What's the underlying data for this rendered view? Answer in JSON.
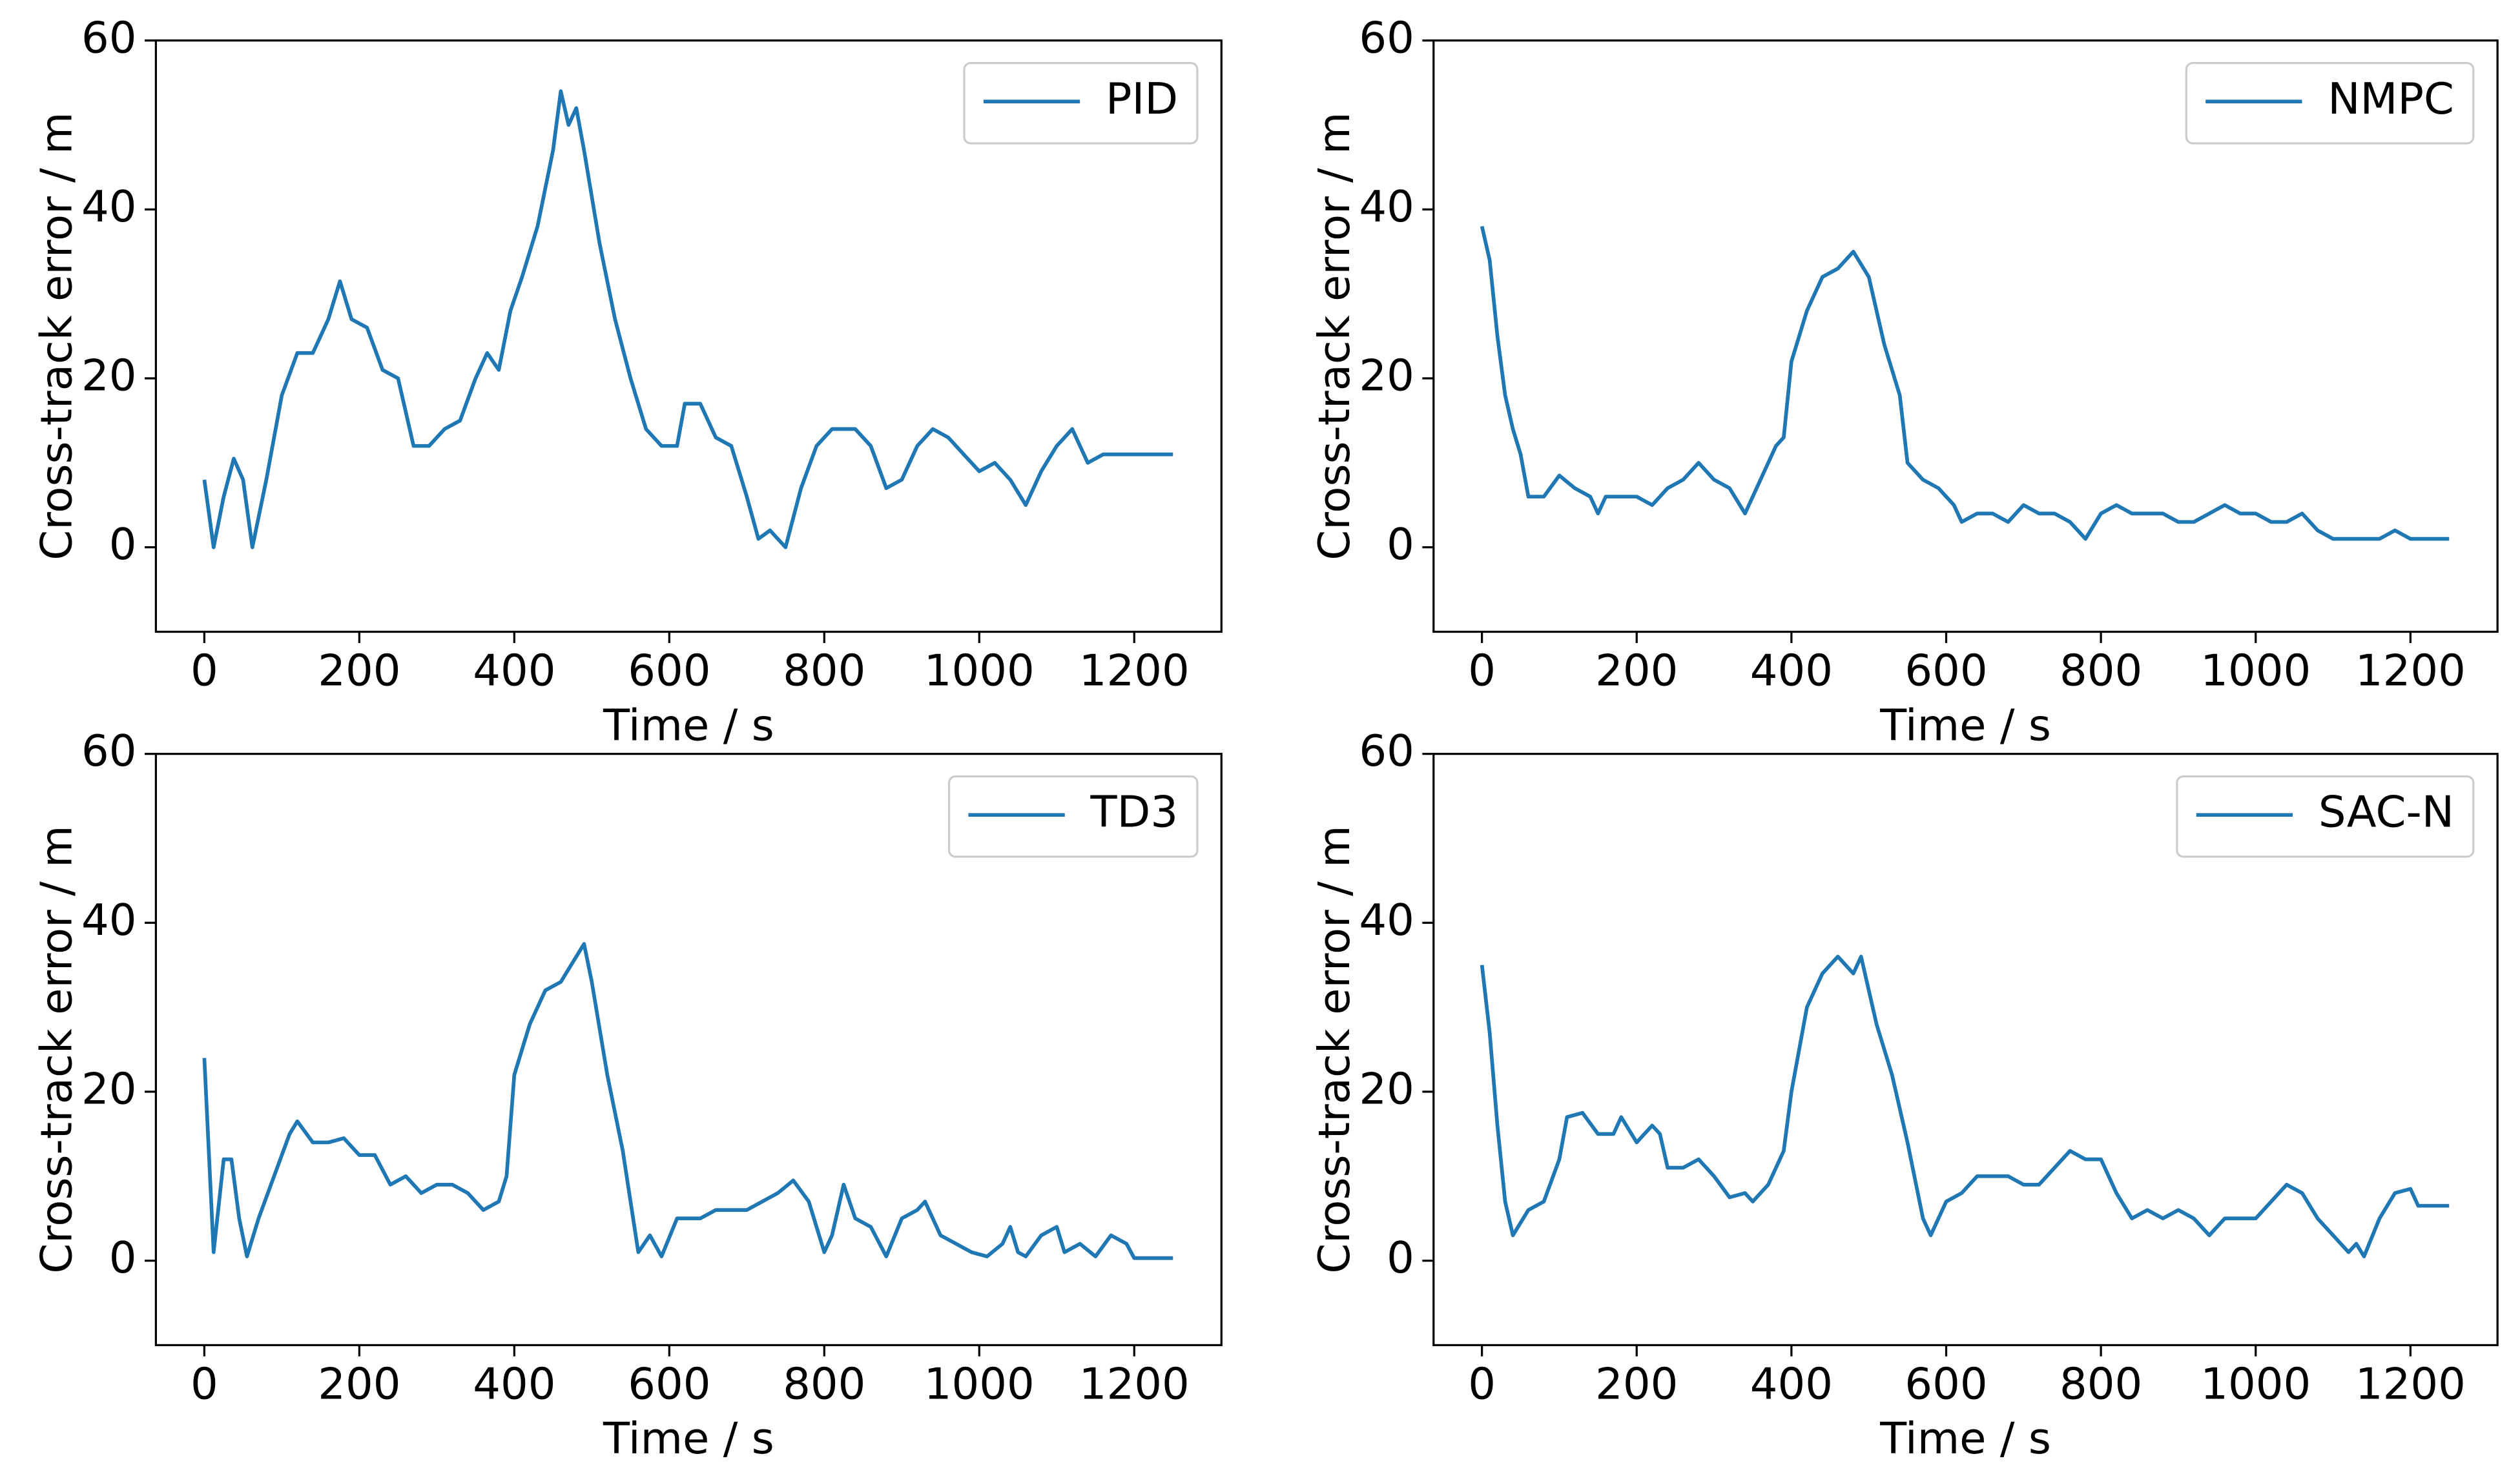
{
  "chart_data": [
    {
      "type": "line",
      "xlabel": "Time / s",
      "ylabel": "Cross-track error / m",
      "legend": "upper right",
      "xlim": [
        -62.5,
        1312.5
      ],
      "ylim": [
        -10,
        60
      ],
      "xticks": [
        0,
        200,
        400,
        600,
        800,
        1000,
        1200
      ],
      "yticks": [
        0,
        20,
        40,
        60
      ],
      "x": [
        0,
        12,
        25,
        38,
        50,
        62,
        80,
        100,
        120,
        140,
        160,
        175,
        190,
        210,
        230,
        250,
        270,
        290,
        310,
        330,
        350,
        365,
        380,
        395,
        410,
        430,
        450,
        460,
        470,
        480,
        490,
        510,
        530,
        550,
        570,
        590,
        610,
        620,
        640,
        660,
        680,
        700,
        715,
        730,
        750,
        770,
        790,
        810,
        840,
        860,
        880,
        900,
        920,
        940,
        960,
        980,
        1000,
        1020,
        1040,
        1060,
        1080,
        1100,
        1120,
        1140,
        1160,
        1180,
        1250
      ],
      "series": [
        {
          "name": "PID",
          "color": "#1f77b4",
          "values": [
            8,
            0,
            6,
            10.5,
            8,
            0,
            8,
            18,
            23,
            23,
            27,
            31.5,
            27,
            26,
            21,
            20,
            12,
            12,
            14,
            15,
            20,
            23,
            21,
            28,
            32,
            38,
            47,
            54,
            50,
            52,
            47,
            36,
            27,
            20,
            14,
            12,
            12,
            17,
            17,
            13,
            12,
            6,
            1,
            2,
            0,
            7,
            12,
            14,
            14,
            12,
            7,
            8,
            12,
            14,
            13,
            11,
            9,
            10,
            8,
            5,
            9,
            12,
            14,
            10,
            11,
            11,
            11
          ]
        }
      ]
    },
    {
      "type": "line",
      "xlabel": "Time / s",
      "ylabel": "Cross-track error / m",
      "legend": "upper right",
      "xlim": [
        -62.5,
        1312.5
      ],
      "ylim": [
        -10,
        60
      ],
      "xticks": [
        0,
        200,
        400,
        600,
        800,
        1000,
        1200
      ],
      "yticks": [
        0,
        20,
        40,
        60
      ],
      "x": [
        0,
        10,
        20,
        30,
        40,
        50,
        60,
        80,
        100,
        120,
        140,
        150,
        160,
        180,
        200,
        220,
        240,
        260,
        280,
        300,
        320,
        340,
        360,
        380,
        390,
        400,
        420,
        440,
        460,
        480,
        500,
        520,
        540,
        550,
        570,
        590,
        610,
        620,
        640,
        660,
        680,
        700,
        720,
        740,
        760,
        780,
        800,
        820,
        840,
        860,
        880,
        900,
        920,
        940,
        960,
        980,
        1000,
        1020,
        1040,
        1060,
        1080,
        1100,
        1120,
        1140,
        1160,
        1180,
        1200,
        1250
      ],
      "series": [
        {
          "name": "NMPC",
          "color": "#1f77b4",
          "values": [
            38,
            34,
            25,
            18,
            14,
            11,
            6,
            6,
            8.5,
            7,
            6,
            4,
            6,
            6,
            6,
            5,
            7,
            8,
            10,
            8,
            7,
            4,
            8,
            12,
            13,
            22,
            28,
            32,
            33,
            35,
            32,
            24,
            18,
            10,
            8,
            7,
            5,
            3,
            4,
            4,
            3,
            5,
            4,
            4,
            3,
            1,
            4,
            5,
            4,
            4,
            4,
            3,
            3,
            4,
            5,
            4,
            4,
            3,
            3,
            4,
            2,
            1,
            1,
            1,
            1,
            2,
            1,
            1
          ]
        }
      ]
    },
    {
      "type": "line",
      "xlabel": "Time / s",
      "ylabel": "Cross-track error / m",
      "legend": "upper right",
      "xlim": [
        -62.5,
        1312.5
      ],
      "ylim": [
        -10,
        60
      ],
      "xticks": [
        0,
        200,
        400,
        600,
        800,
        1000,
        1200
      ],
      "yticks": [
        0,
        20,
        40,
        60
      ],
      "x": [
        0,
        12,
        25,
        35,
        45,
        55,
        70,
        90,
        110,
        120,
        140,
        160,
        180,
        200,
        220,
        240,
        260,
        280,
        300,
        320,
        340,
        360,
        380,
        390,
        400,
        420,
        440,
        460,
        480,
        490,
        500,
        520,
        540,
        560,
        575,
        590,
        610,
        640,
        660,
        680,
        700,
        720,
        740,
        760,
        780,
        800,
        810,
        825,
        840,
        860,
        880,
        900,
        920,
        930,
        950,
        970,
        990,
        1010,
        1030,
        1040,
        1050,
        1060,
        1080,
        1100,
        1110,
        1130,
        1150,
        1170,
        1190,
        1200,
        1250
      ],
      "series": [
        {
          "name": "TD3",
          "color": "#1f77b4",
          "values": [
            24,
            1,
            12,
            12,
            5,
            0.5,
            5,
            10,
            15,
            16.5,
            14,
            14,
            14.5,
            12.5,
            12.5,
            9,
            10,
            8,
            9,
            9,
            8,
            6,
            7,
            10,
            22,
            28,
            32,
            33,
            36,
            37.5,
            33,
            22,
            13,
            1,
            3,
            0.5,
            5,
            5,
            6,
            6,
            6,
            7,
            8,
            9.5,
            7,
            1,
            3,
            9,
            5,
            4,
            0.5,
            5,
            6,
            7,
            3,
            2,
            1,
            0.5,
            2,
            4,
            1,
            0.5,
            3,
            4,
            1,
            2,
            0.5,
            3,
            2,
            0.3,
            0.3
          ]
        }
      ]
    },
    {
      "type": "line",
      "xlabel": "Time / s",
      "ylabel": "Cross-track error / m",
      "legend": "upper right",
      "xlim": [
        -62.5,
        1312.5
      ],
      "ylim": [
        -10,
        60
      ],
      "xticks": [
        0,
        200,
        400,
        600,
        800,
        1000,
        1200
      ],
      "yticks": [
        0,
        20,
        40,
        60
      ],
      "x": [
        0,
        10,
        20,
        30,
        40,
        60,
        80,
        100,
        110,
        130,
        150,
        170,
        180,
        200,
        220,
        230,
        240,
        260,
        280,
        300,
        320,
        340,
        350,
        370,
        390,
        400,
        420,
        440,
        460,
        480,
        490,
        510,
        530,
        550,
        570,
        580,
        600,
        620,
        640,
        660,
        680,
        700,
        720,
        740,
        760,
        780,
        800,
        820,
        840,
        860,
        880,
        900,
        920,
        940,
        960,
        980,
        1000,
        1020,
        1040,
        1060,
        1080,
        1100,
        1120,
        1130,
        1140,
        1160,
        1180,
        1200,
        1210,
        1250
      ],
      "series": [
        {
          "name": "SAC-N",
          "color": "#1f77b4",
          "values": [
            35,
            27,
            16,
            7,
            3,
            6,
            7,
            12,
            17,
            17.5,
            15,
            15,
            17,
            14,
            16,
            15,
            11,
            11,
            12,
            10,
            7.5,
            8,
            7,
            9,
            13,
            20,
            30,
            34,
            36,
            34,
            36,
            28,
            22,
            14,
            5,
            3,
            7,
            8,
            10,
            10,
            10,
            9,
            9,
            11,
            13,
            12,
            12,
            8,
            5,
            6,
            5,
            6,
            5,
            3,
            5,
            5,
            5,
            7,
            9,
            8,
            5,
            3,
            1,
            2,
            0.5,
            5,
            8,
            8.5,
            6.5,
            6.5
          ]
        }
      ]
    }
  ]
}
